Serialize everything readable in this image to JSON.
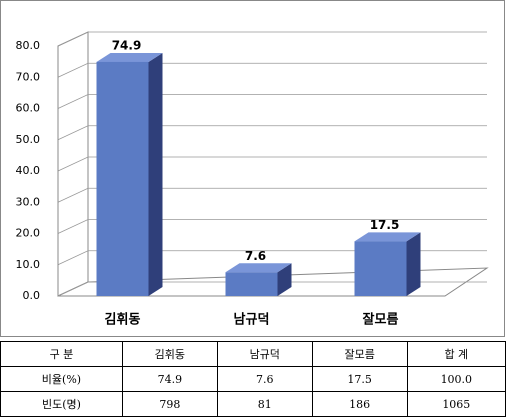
{
  "chart_data": {
    "type": "bar3d",
    "categories": [
      "김휘동",
      "남규덕",
      "잘모름"
    ],
    "values": [
      74.9,
      7.6,
      17.5
    ],
    "color": "#5b7bc4",
    "ylim": [
      0,
      80
    ],
    "yticks": [
      {
        "value": 0,
        "label": "0.0"
      },
      {
        "value": 10,
        "label": "10.0"
      },
      {
        "value": 20,
        "label": "20.0"
      },
      {
        "value": 30,
        "label": "30.0"
      },
      {
        "value": 40,
        "label": "40.0"
      },
      {
        "value": 50,
        "label": "50.0"
      },
      {
        "value": 60,
        "label": "60.0"
      },
      {
        "value": 70,
        "label": "70.0"
      },
      {
        "value": 80,
        "label": "80.0"
      }
    ],
    "grid": true
  },
  "table": {
    "header": [
      "구 분",
      "김휘동",
      "남규덕",
      "잘모름",
      "합 계"
    ],
    "rows": [
      [
        "비율(%)",
        "74.9",
        "7.6",
        "17.5",
        "100.0"
      ],
      [
        "빈도(명)",
        "798",
        "81",
        "186",
        "1065"
      ]
    ]
  }
}
